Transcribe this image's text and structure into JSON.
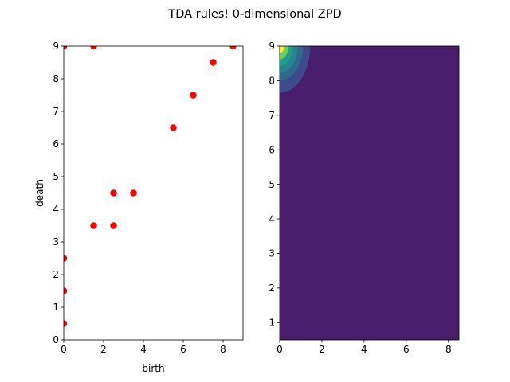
{
  "title": "TDA rules! 0-dimensional ZPD",
  "chart_data": [
    {
      "type": "scatter",
      "xlabel": "birth",
      "ylabel": "death",
      "xlim": [
        0,
        9
      ],
      "ylim": [
        0,
        9
      ],
      "xticks": [
        0,
        2,
        4,
        6,
        8
      ],
      "yticks": [
        0,
        1,
        2,
        3,
        4,
        5,
        6,
        7,
        8,
        9
      ],
      "grid": false,
      "marker_color": "#ff0000",
      "points": [
        {
          "x": 0,
          "y": 0.5
        },
        {
          "x": 0,
          "y": 1.5
        },
        {
          "x": 0,
          "y": 2.5
        },
        {
          "x": 0,
          "y": 9
        },
        {
          "x": 1.5,
          "y": 9
        },
        {
          "x": 1.5,
          "y": 3.5
        },
        {
          "x": 2.5,
          "y": 3.5
        },
        {
          "x": 2.5,
          "y": 4.5
        },
        {
          "x": 3.5,
          "y": 4.5
        },
        {
          "x": 5.5,
          "y": 6.5
        },
        {
          "x": 6.5,
          "y": 7.5
        },
        {
          "x": 7.5,
          "y": 8.5
        },
        {
          "x": 8.5,
          "y": 9
        }
      ]
    },
    {
      "type": "heatmap",
      "xlabel": "",
      "ylabel": "",
      "xlim": [
        0,
        8.5
      ],
      "ylim": [
        0.5,
        9
      ],
      "xticks": [
        0,
        2,
        4,
        6,
        8
      ],
      "yticks": [
        1,
        2,
        3,
        4,
        5,
        6,
        7,
        8,
        9
      ],
      "grid": false,
      "background_color": "#471d6c",
      "peak": {
        "x": 0,
        "y": 9
      },
      "contour_levels": [
        {
          "rx": 1.45,
          "ry": 1.35,
          "color": "#3e4a89"
        },
        {
          "rx": 1.1,
          "ry": 1.0,
          "color": "#31688e"
        },
        {
          "rx": 0.85,
          "ry": 0.78,
          "color": "#26838f"
        },
        {
          "rx": 0.62,
          "ry": 0.57,
          "color": "#1f9e89"
        },
        {
          "rx": 0.42,
          "ry": 0.38,
          "color": "#6ece58"
        },
        {
          "rx": 0.22,
          "ry": 0.2,
          "color": "#fde725"
        }
      ]
    }
  ]
}
